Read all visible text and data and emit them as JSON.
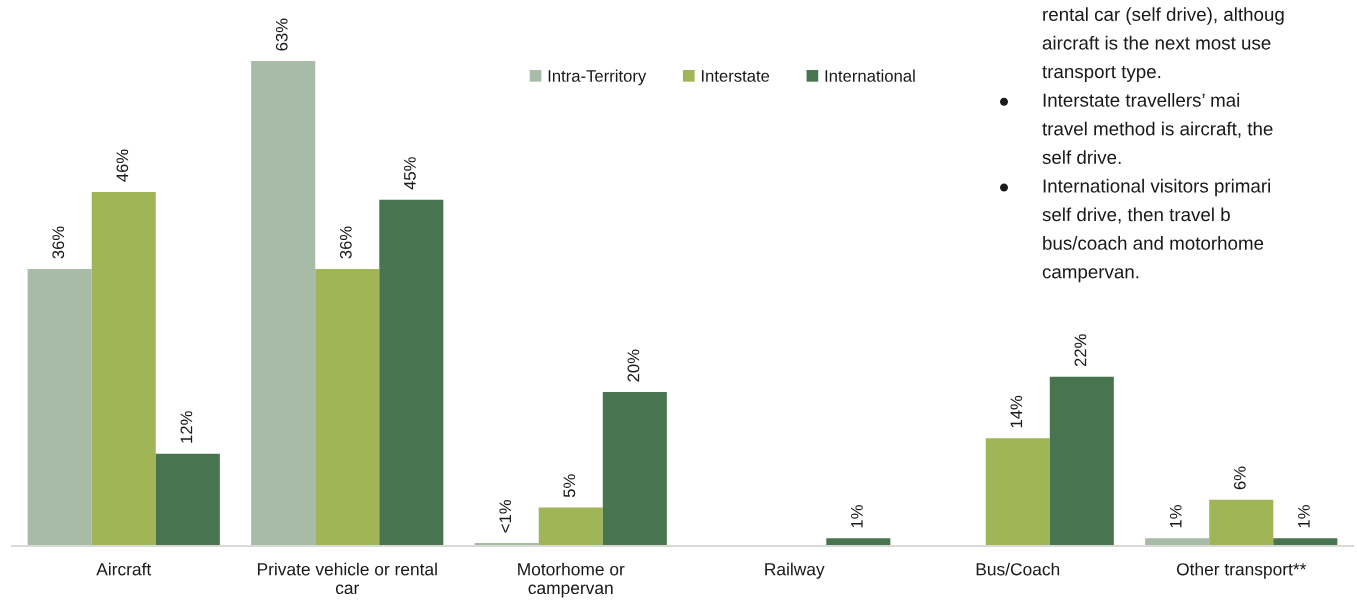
{
  "chart_data": {
    "type": "bar",
    "categories": [
      "Aircraft",
      "Private vehicle or rental\ncar",
      "Motorhome or\ncampervan",
      "Railway",
      "Bus/Coach",
      "Other transport**"
    ],
    "series": [
      {
        "name": "Intra-Territory",
        "color": "#a8bba6",
        "values": [
          36,
          63,
          0.4,
          null,
          null,
          1
        ],
        "value_labels": [
          "36%",
          "63%",
          "<1%",
          null,
          null,
          "1%"
        ]
      },
      {
        "name": "Interstate",
        "color": "#a0b556",
        "values": [
          46,
          36,
          5,
          null,
          14,
          6
        ],
        "value_labels": [
          "46%",
          "36%",
          "5%",
          null,
          "14%",
          "6%"
        ]
      },
      {
        "name": "International",
        "color": "#48754f",
        "values": [
          12,
          45,
          20,
          1,
          22,
          1
        ],
        "value_labels": [
          "12%",
          "45%",
          "20%",
          "1%",
          "22%",
          "1%"
        ]
      }
    ],
    "legend": "top",
    "tick_labels": "x",
    "annotations": [
      "rental car (self drive), althoug\naircraft is the next most use\ntransport type.",
      "Interstate travellers’ mai\ntravel method is aircraft, the\nself drive.",
      "International visitors primari\nself drive, then travel b\nbus/coach and motorhome\ncampervan."
    ]
  }
}
